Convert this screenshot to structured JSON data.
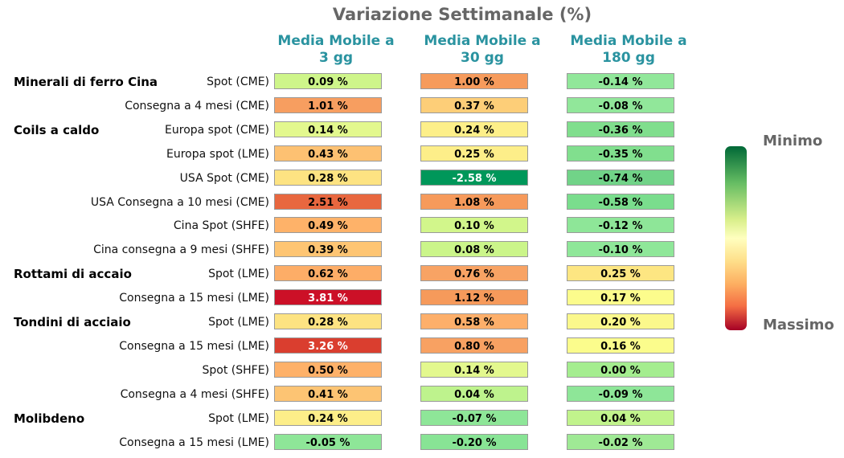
{
  "chart_data": {
    "type": "heatmap",
    "title": "Variazione Settimanale (%)",
    "columns": [
      {
        "line1": "Media Mobile a",
        "line2": "3 gg"
      },
      {
        "line1": "Media Mobile a",
        "line2": "30 gg"
      },
      {
        "line1": "Media Mobile a",
        "line2": "180 gg"
      }
    ],
    "value_suffix": " %",
    "colorbar": {
      "top_label": "Minimo",
      "bottom_label": "Massimo"
    },
    "rows": [
      {
        "group": "Minerali di ferro Cina",
        "label": "Spot (CME)",
        "values": [
          0.09,
          1.0,
          -0.14
        ]
      },
      {
        "group": "",
        "label": "Consegna a 4 mesi (CME)",
        "values": [
          1.01,
          0.37,
          -0.08
        ]
      },
      {
        "group": "Coils a caldo",
        "label": "Europa spot (CME)",
        "values": [
          0.14,
          0.24,
          -0.36
        ]
      },
      {
        "group": "",
        "label": "Europa spot (LME)",
        "values": [
          0.43,
          0.25,
          -0.35
        ]
      },
      {
        "group": "",
        "label": "USA Spot (CME)",
        "values": [
          0.28,
          -2.58,
          -0.74
        ]
      },
      {
        "group": "",
        "label": "USA Consegna a 10 mesi (CME)",
        "values": [
          2.51,
          1.08,
          -0.58
        ]
      },
      {
        "group": "",
        "label": "Cina Spot (SHFE)",
        "values": [
          0.49,
          0.1,
          -0.12
        ]
      },
      {
        "group": "",
        "label": "Cina consegna a 9 mesi (SHFE)",
        "values": [
          0.39,
          0.08,
          -0.1
        ]
      },
      {
        "group": "Rottami di accaio",
        "label": "Spot (LME)",
        "values": [
          0.62,
          0.76,
          0.25
        ]
      },
      {
        "group": "",
        "label": "Consegna a 15 mesi (LME)",
        "values": [
          3.81,
          1.12,
          0.17
        ]
      },
      {
        "group": "Tondini di acciaio",
        "label": "Spot (LME)",
        "values": [
          0.28,
          0.58,
          0.2
        ]
      },
      {
        "group": "",
        "label": "Consegna a 15 mesi (LME)",
        "values": [
          3.26,
          0.8,
          0.16
        ]
      },
      {
        "group": "",
        "label": "Spot (SHFE)",
        "values": [
          0.5,
          0.14,
          0.0
        ]
      },
      {
        "group": "",
        "label": "Consegna a 4 mesi (SHFE)",
        "values": [
          0.41,
          0.04,
          -0.09
        ]
      },
      {
        "group": "Molibdeno",
        "label": "Spot (LME)",
        "values": [
          0.24,
          -0.07,
          0.04
        ]
      },
      {
        "group": "",
        "label": "Consegna a 15 mesi (LME)",
        "values": [
          -0.05,
          -0.2,
          -0.02
        ]
      }
    ],
    "cell_colors": [
      [
        "#cef58a",
        "#f69b5c",
        "#91e79a"
      ],
      [
        "#f79e60",
        "#fdce78",
        "#91e79a"
      ],
      [
        "#e3f88e",
        "#fdef89",
        "#80de8d"
      ],
      [
        "#fdc172",
        "#fdee89",
        "#81df8e"
      ],
      [
        "#fde382",
        "#00975a",
        "#71d388"
      ],
      [
        "#e8673f",
        "#f69a5b",
        "#7add8d"
      ],
      [
        "#feb269",
        "#d2f68b",
        "#8ee698"
      ],
      [
        "#fec573",
        "#cbf58a",
        "#8fe799"
      ],
      [
        "#fdad67",
        "#f8a364",
        "#fde682"
      ],
      [
        "#cc1027",
        "#f69a5b",
        "#fcfc8c"
      ],
      [
        "#fde382",
        "#fdaf6a",
        "#fbf88c"
      ],
      [
        "#da3e2f",
        "#f8a162",
        "#fbfc8c"
      ],
      [
        "#feb169",
        "#e3f88e",
        "#a4ed8f"
      ],
      [
        "#fdc473",
        "#bef38d",
        "#8ee698"
      ],
      [
        "#fdee89",
        "#8ee698",
        "#c1f38c"
      ],
      [
        "#8ee698",
        "#88e495",
        "#9fe995"
      ]
    ]
  }
}
